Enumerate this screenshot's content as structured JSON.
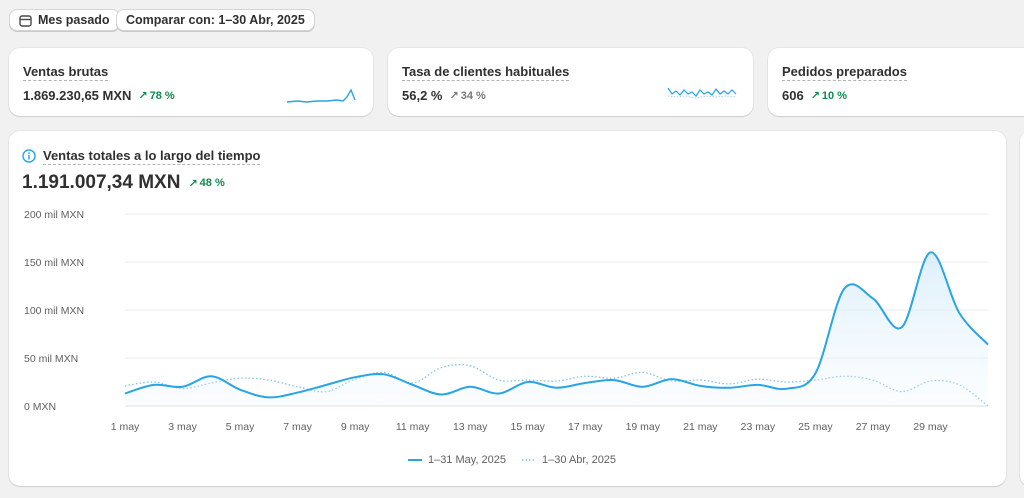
{
  "filters": {
    "date_range": "Mes pasado",
    "compare": "Comparar con: 1–30 Abr, 2025"
  },
  "kpis": [
    {
      "title": "Ventas brutas",
      "value": "1.869.230,65 MXN",
      "delta": "78 %",
      "trend": "up",
      "delta_color": "#0f8a4e"
    },
    {
      "title": "Tasa de clientes habituales",
      "value": "56,2 %",
      "delta": "34 %",
      "trend": "up",
      "delta_color": "#7a7a7a"
    },
    {
      "title": "Pedidos preparados",
      "value": "606",
      "delta": "10 %",
      "trend": "up",
      "delta_color": "#0f8a4e"
    }
  ],
  "main": {
    "title": "Ventas totales a lo largo del tiempo",
    "value": "1.191.007,34 MXN",
    "delta": "48 %"
  },
  "colors": {
    "accent": "#29a4e6",
    "positive": "#0f8a4e",
    "info_icon": "#29a4e6"
  },
  "chart_data": {
    "type": "line",
    "title": "Ventas totales a lo largo del tiempo",
    "y_tick_labels": [
      "200 mil MXN",
      "150 mil MXN",
      "100 mil MXN",
      "50 mil MXN",
      "0 MXN"
    ],
    "y_ticks": [
      200000,
      150000,
      100000,
      50000,
      0
    ],
    "ylim": [
      0,
      200000
    ],
    "x_tick_labels": [
      "1 may",
      "3 may",
      "5 may",
      "7 may",
      "9 may",
      "11 may",
      "13 may",
      "15 may",
      "17 may",
      "19 may",
      "21 may",
      "23 may",
      "25 may",
      "27 may",
      "29 may"
    ],
    "x": [
      "1 may",
      "2 may",
      "3 may",
      "4 may",
      "5 may",
      "6 may",
      "7 may",
      "8 may",
      "9 may",
      "10 may",
      "11 may",
      "12 may",
      "13 may",
      "14 may",
      "15 may",
      "16 may",
      "17 may",
      "18 may",
      "19 may",
      "20 may",
      "21 may",
      "22 may",
      "23 may",
      "24 may",
      "25 may",
      "26 may",
      "27 may",
      "28 may",
      "29 may",
      "30 may",
      "31 may"
    ],
    "series": [
      {
        "name": "1–31 May, 2025",
        "style": "solid",
        "values": [
          13000,
          22000,
          20000,
          31000,
          17000,
          9000,
          14000,
          22000,
          30000,
          33000,
          22000,
          12000,
          20000,
          13000,
          25000,
          19000,
          24000,
          27000,
          20000,
          28000,
          21000,
          19000,
          22000,
          18000,
          34000,
          122000,
          112000,
          82000,
          160000,
          97000,
          64000
        ]
      },
      {
        "name": "1–30 Abr, 2025",
        "style": "dotted",
        "values": [
          21000,
          25000,
          18000,
          24000,
          29000,
          27000,
          20000,
          15000,
          28000,
          35000,
          24000,
          40000,
          42000,
          27000,
          27000,
          26000,
          31000,
          29000,
          35000,
          26000,
          27000,
          23000,
          28000,
          25000,
          27000,
          31000,
          27000,
          15000,
          26000,
          22000,
          0
        ]
      }
    ],
    "grid": true,
    "legend": "bottom-center"
  }
}
